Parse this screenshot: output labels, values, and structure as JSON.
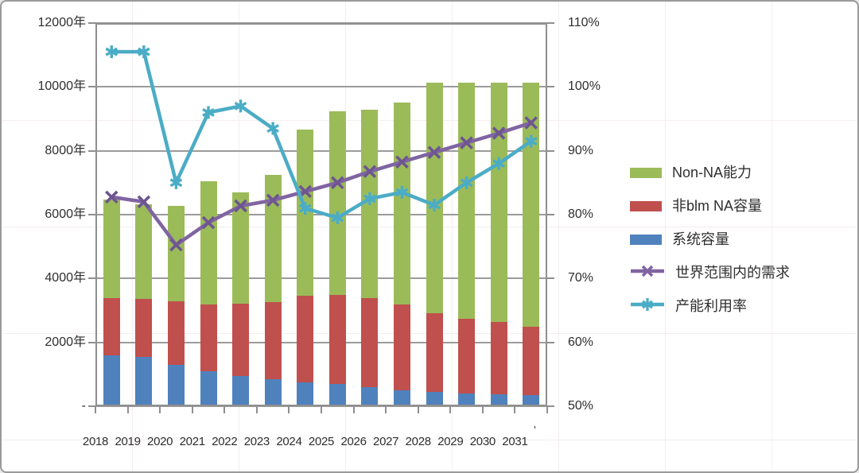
{
  "chart_data": {
    "type": "combo",
    "bar_mode": "stacked",
    "categories": [
      "2018",
      "2019",
      "2020",
      "2021",
      "2022",
      "2023",
      "2024",
      "2025",
      "2026",
      "2027",
      "2028",
      "2029",
      "2030",
      "2031"
    ],
    "series": [
      {
        "name": "系统容量",
        "type": "bar",
        "axis": "left",
        "color": "#4F81BD",
        "values": [
          1600,
          1550,
          1300,
          1100,
          950,
          850,
          750,
          700,
          600,
          500,
          450,
          400,
          375,
          350
        ]
      },
      {
        "name": "非blm NA容量",
        "type": "bar",
        "axis": "left",
        "color": "#C0504D",
        "values": [
          1775,
          1800,
          1975,
          2075,
          2250,
          2400,
          2700,
          2775,
          2775,
          2675,
          2475,
          2350,
          2275,
          2150
        ]
      },
      {
        "name": "Non-NA能力",
        "type": "bar",
        "axis": "left",
        "color": "#9BBB59",
        "values": [
          3100,
          2975,
          3000,
          3875,
          3500,
          4000,
          5225,
          5750,
          5900,
          6325,
          7200,
          7375,
          7475,
          7625
        ]
      },
      {
        "name": "世界范围内的需求",
        "type": "line",
        "axis": "left",
        "marker": "x",
        "color": "#8064A2",
        "marker_color": "#6E5591",
        "values": [
          6550,
          6400,
          5050,
          5750,
          6275,
          6450,
          6725,
          7000,
          7350,
          7650,
          7950,
          8250,
          8550,
          8875
        ]
      },
      {
        "name": "产能利用率",
        "type": "line",
        "axis": "right",
        "marker": "asterisk",
        "color": "#4BACC6",
        "marker_color": "#4BACC6",
        "values": [
          105.5,
          105.5,
          85,
          96,
          97,
          93.5,
          81,
          79.5,
          82.5,
          83.5,
          81.5,
          85,
          88,
          91.5
        ]
      }
    ],
    "left_axis": {
      "min": 0,
      "max": 12000,
      "step": 2000,
      "tick_labels": [
        "12000年",
        "10000年",
        "8000年",
        "6000年",
        "4000年",
        "2000年",
        "-"
      ]
    },
    "right_axis": {
      "min": 50,
      "max": 110,
      "step": 10,
      "tick_labels": [
        "110%",
        "100%",
        "90%",
        "80%",
        "70%",
        "60%",
        "50%"
      ]
    },
    "grid": true,
    "legend_position": "right",
    "title": "",
    "xlabel": "",
    "ylabel": ""
  },
  "legend": {
    "items": [
      {
        "label": "Non-NA能力",
        "swatch": "bar",
        "color": "#9BBB59"
      },
      {
        "label": "非blm NA容量",
        "swatch": "bar",
        "color": "#C0504D"
      },
      {
        "label": "系统容量",
        "swatch": "bar",
        "color": "#4F81BD"
      },
      {
        "label": "世界范围内的需求",
        "swatch": "line",
        "marker": "x",
        "color": "#8064A2"
      },
      {
        "label": "产能利用率",
        "swatch": "line",
        "marker": "asterisk",
        "color": "#4BACC6"
      }
    ]
  },
  "artifacts": {
    "stray_mark": "'"
  }
}
